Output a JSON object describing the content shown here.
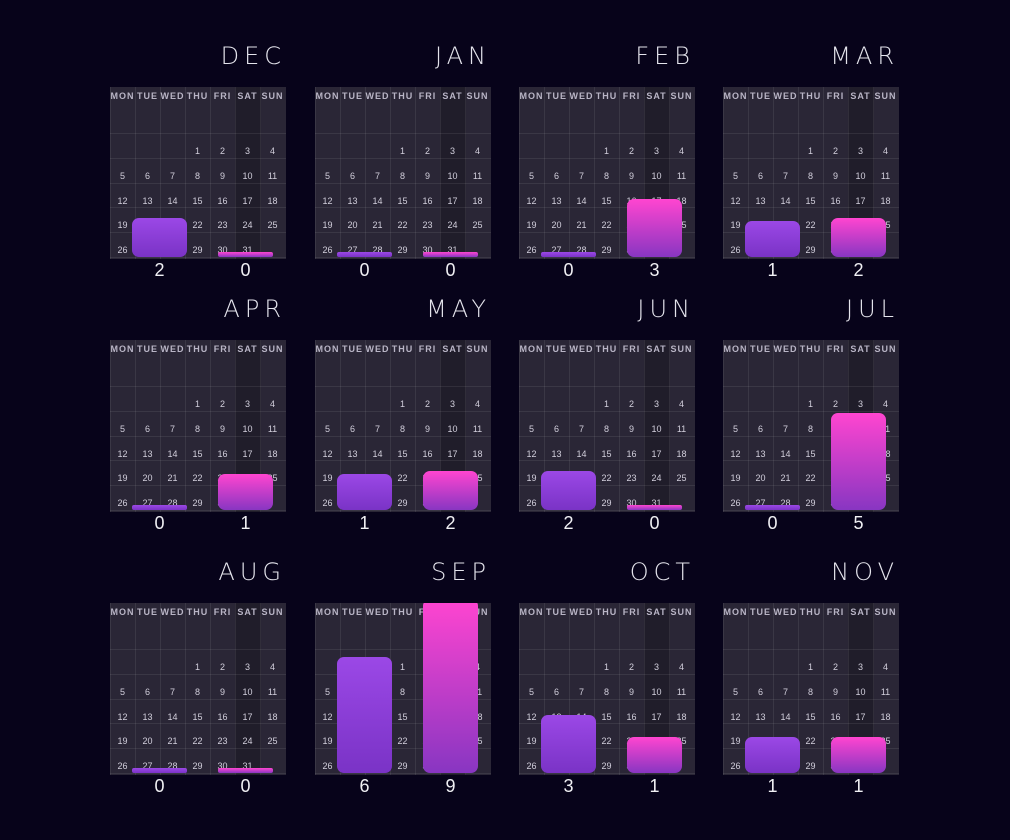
{
  "chart_data": {
    "type": "bar",
    "weekday_headers": [
      "MON",
      "TUE",
      "WED",
      "THU",
      "FRI",
      "SAT",
      "SUN"
    ],
    "calendar_rows": [
      [
        "",
        "",
        "",
        "1",
        "2",
        "3",
        "4"
      ],
      [
        "5",
        "6",
        "7",
        "8",
        "9",
        "10",
        "11"
      ],
      [
        "12",
        "13",
        "14",
        "15",
        "16",
        "17",
        "18"
      ],
      [
        "19",
        "20",
        "21",
        "22",
        "23",
        "24",
        "25"
      ],
      [
        "26",
        "27",
        "28",
        "29",
        "30",
        "31",
        ""
      ]
    ],
    "panels": [
      {
        "month": "DEC",
        "values": [
          2,
          0
        ]
      },
      {
        "month": "JAN",
        "values": [
          0,
          0
        ]
      },
      {
        "month": "FEB",
        "values": [
          0,
          3
        ]
      },
      {
        "month": "MAR",
        "values": [
          1,
          2
        ]
      },
      {
        "month": "APR",
        "values": [
          0,
          1
        ]
      },
      {
        "month": "MAY",
        "values": [
          1,
          2
        ]
      },
      {
        "month": "JUN",
        "values": [
          2,
          0
        ]
      },
      {
        "month": "JUL",
        "values": [
          0,
          5
        ]
      },
      {
        "month": "AUG",
        "values": [
          0,
          0
        ]
      },
      {
        "month": "SEP",
        "values": [
          6,
          9
        ]
      },
      {
        "month": "OCT",
        "values": [
          3,
          1
        ]
      },
      {
        "month": "NOV",
        "values": [
          1,
          1
        ]
      }
    ],
    "ylim": [
      0,
      9
    ],
    "colors": {
      "background": "#07031a",
      "calendar": "#2a2636",
      "series_1": "#8e3fdc",
      "series_2": "#ff45d0"
    }
  }
}
